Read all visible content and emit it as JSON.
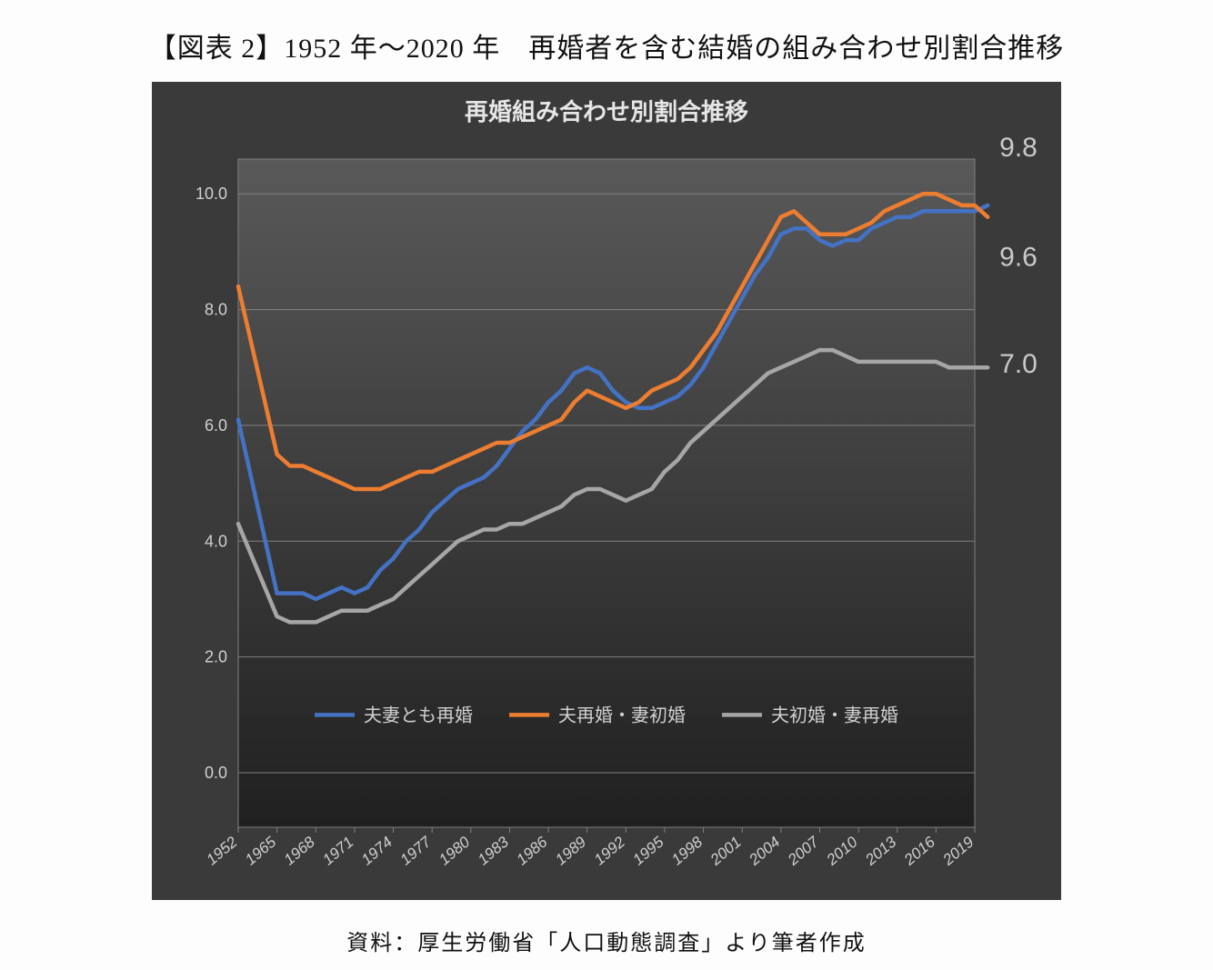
{
  "figure_title": "【図表 2】1952 年～2020 年　再婚者を含む結婚の組み合わせ別割合推移",
  "source_caption": "資料：厚生労働省「人口動態調査」より筆者作成",
  "chart": {
    "type": "line",
    "title": "再婚組み合わせ別割合推移",
    "title_fontsize": 26,
    "title_color": "#e6e6e6",
    "bg_outer": "#3a3a3a",
    "bg_gradient_top": "#595959",
    "bg_gradient_bottom": "#202020",
    "plot_border_color": "#808080",
    "grid_color": "#808080",
    "axis_label_color": "#d0d0d0",
    "axis_label_fontsize": 18,
    "x_tick_label_fontsize": 17,
    "ylim": [
      0.0,
      10.6
    ],
    "yticks": [
      0.0,
      2.0,
      4.0,
      6.0,
      8.0,
      10.0
    ],
    "ytick_labels": [
      "0.0",
      "2.0",
      "4.0",
      "6.0",
      "8.0",
      "10.0"
    ],
    "x_start_year": 1952,
    "x_end_year": 2020,
    "x_tick_years": [
      1952,
      1965,
      1968,
      1971,
      1974,
      1977,
      1980,
      1983,
      1986,
      1989,
      1992,
      1995,
      1998,
      2001,
      2004,
      2007,
      2010,
      2013,
      2016,
      2019
    ],
    "line_width": 4.5,
    "legend": {
      "fontsize": 20,
      "color": "#d0d0d0",
      "dash_length": 44,
      "items": [
        {
          "label": "夫妻とも再婚",
          "color": "#4472c4"
        },
        {
          "label": "夫再婚・妻初婚",
          "color": "#ed7d31"
        },
        {
          "label": "夫初婚・妻再婚",
          "color": "#a6a6a6"
        }
      ]
    },
    "end_labels": [
      {
        "text": "9.8",
        "y": 9.8,
        "color": "#c9c9c9",
        "fontsize": 30,
        "dy": -54
      },
      {
        "text": "9.6",
        "y": 9.6,
        "color": "#c9c9c9",
        "fontsize": 30,
        "dy": 54
      },
      {
        "text": "7.0",
        "y": 7.0,
        "color": "#c9c9c9",
        "fontsize": 30,
        "dy": 6
      }
    ],
    "series": [
      {
        "name": "夫妻とも再婚",
        "color": "#4472c4",
        "years": [
          1952,
          1965,
          1966,
          1967,
          1968,
          1969,
          1970,
          1971,
          1972,
          1973,
          1974,
          1975,
          1976,
          1977,
          1978,
          1979,
          1980,
          1981,
          1982,
          1983,
          1984,
          1985,
          1986,
          1987,
          1988,
          1989,
          1990,
          1991,
          1992,
          1993,
          1994,
          1995,
          1996,
          1997,
          1998,
          1999,
          2000,
          2001,
          2002,
          2003,
          2004,
          2005,
          2006,
          2007,
          2008,
          2009,
          2010,
          2011,
          2012,
          2013,
          2014,
          2015,
          2016,
          2017,
          2018,
          2019,
          2020
        ],
        "values": [
          6.1,
          3.1,
          3.1,
          3.1,
          3.0,
          3.1,
          3.2,
          3.1,
          3.2,
          3.5,
          3.7,
          4.0,
          4.2,
          4.5,
          4.7,
          4.9,
          5.0,
          5.1,
          5.3,
          5.6,
          5.9,
          6.1,
          6.4,
          6.6,
          6.9,
          7.0,
          6.9,
          6.6,
          6.4,
          6.3,
          6.3,
          6.4,
          6.5,
          6.7,
          7.0,
          7.4,
          7.8,
          8.2,
          8.6,
          8.9,
          9.3,
          9.4,
          9.4,
          9.2,
          9.1,
          9.2,
          9.2,
          9.4,
          9.5,
          9.6,
          9.6,
          9.7,
          9.7,
          9.7,
          9.7,
          9.7,
          9.8
        ]
      },
      {
        "name": "夫再婚・妻初婚",
        "color": "#ed7d31",
        "years": [
          1952,
          1965,
          1966,
          1967,
          1968,
          1969,
          1970,
          1971,
          1972,
          1973,
          1974,
          1975,
          1976,
          1977,
          1978,
          1979,
          1980,
          1981,
          1982,
          1983,
          1984,
          1985,
          1986,
          1987,
          1988,
          1989,
          1990,
          1991,
          1992,
          1993,
          1994,
          1995,
          1996,
          1997,
          1998,
          1999,
          2000,
          2001,
          2002,
          2003,
          2004,
          2005,
          2006,
          2007,
          2008,
          2009,
          2010,
          2011,
          2012,
          2013,
          2014,
          2015,
          2016,
          2017,
          2018,
          2019,
          2020
        ],
        "values": [
          8.4,
          5.5,
          5.3,
          5.3,
          5.2,
          5.1,
          5.0,
          4.9,
          4.9,
          4.9,
          5.0,
          5.1,
          5.2,
          5.2,
          5.3,
          5.4,
          5.5,
          5.6,
          5.7,
          5.7,
          5.8,
          5.9,
          6.0,
          6.1,
          6.4,
          6.6,
          6.5,
          6.4,
          6.3,
          6.4,
          6.6,
          6.7,
          6.8,
          7.0,
          7.3,
          7.6,
          8.0,
          8.4,
          8.8,
          9.2,
          9.6,
          9.7,
          9.5,
          9.3,
          9.3,
          9.3,
          9.4,
          9.5,
          9.7,
          9.8,
          9.9,
          10.0,
          10.0,
          9.9,
          9.8,
          9.8,
          9.6
        ]
      },
      {
        "name": "夫初婚・妻再婚",
        "color": "#a6a6a6",
        "years": [
          1952,
          1965,
          1966,
          1967,
          1968,
          1969,
          1970,
          1971,
          1972,
          1973,
          1974,
          1975,
          1976,
          1977,
          1978,
          1979,
          1980,
          1981,
          1982,
          1983,
          1984,
          1985,
          1986,
          1987,
          1988,
          1989,
          1990,
          1991,
          1992,
          1993,
          1994,
          1995,
          1996,
          1997,
          1998,
          1999,
          2000,
          2001,
          2002,
          2003,
          2004,
          2005,
          2006,
          2007,
          2008,
          2009,
          2010,
          2011,
          2012,
          2013,
          2014,
          2015,
          2016,
          2017,
          2018,
          2019,
          2020
        ],
        "values": [
          4.3,
          2.7,
          2.6,
          2.6,
          2.6,
          2.7,
          2.8,
          2.8,
          2.8,
          2.9,
          3.0,
          3.2,
          3.4,
          3.6,
          3.8,
          4.0,
          4.1,
          4.2,
          4.2,
          4.3,
          4.3,
          4.4,
          4.5,
          4.6,
          4.8,
          4.9,
          4.9,
          4.8,
          4.7,
          4.8,
          4.9,
          5.2,
          5.4,
          5.7,
          5.9,
          6.1,
          6.3,
          6.5,
          6.7,
          6.9,
          7.0,
          7.1,
          7.2,
          7.3,
          7.3,
          7.2,
          7.1,
          7.1,
          7.1,
          7.1,
          7.1,
          7.1,
          7.1,
          7.0,
          7.0,
          7.0,
          7.0
        ]
      }
    ]
  }
}
